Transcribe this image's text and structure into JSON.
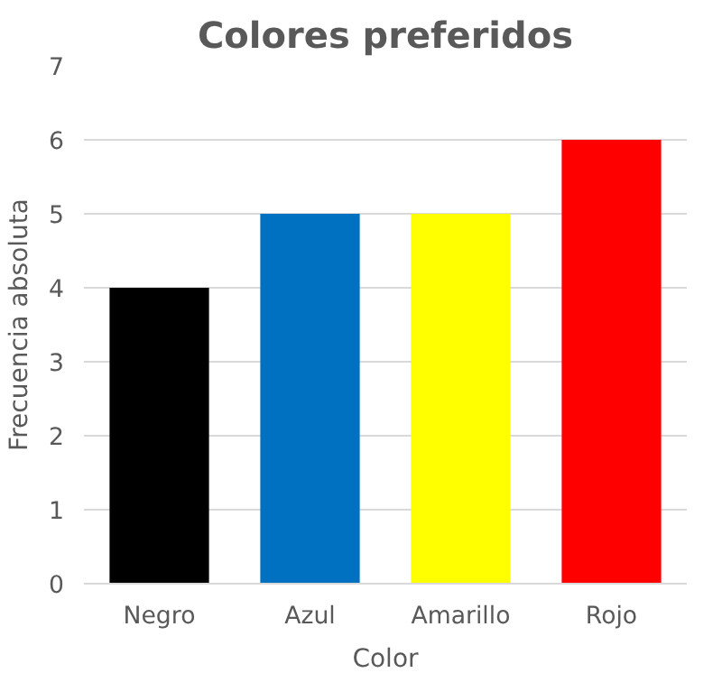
{
  "chart_data": {
    "type": "bar",
    "title": "Colores preferidos",
    "xlabel": "Color",
    "ylabel": "Frecuencia absoluta",
    "categories": [
      "Negro",
      "Azul",
      "Amarillo",
      "Rojo"
    ],
    "values": [
      4,
      5,
      5,
      6
    ],
    "colors": [
      "#000000",
      "#0070c0",
      "#ffff00",
      "#ff0000"
    ],
    "ylim": [
      0,
      7
    ],
    "yticks": [
      0,
      1,
      2,
      3,
      4,
      5,
      6,
      7
    ],
    "grid": "y"
  }
}
